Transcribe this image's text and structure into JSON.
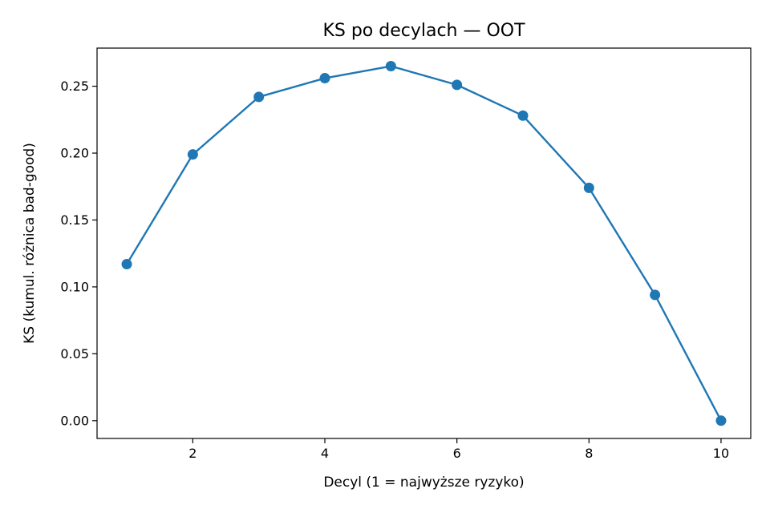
{
  "chart_data": {
    "type": "line",
    "title": "KS po decylach — OOT",
    "xlabel": "Decyl (1 = najwyższe ryzyko)",
    "ylabel": "KS (kumul. różnica bad-good)",
    "x": [
      1,
      2,
      3,
      4,
      5,
      6,
      7,
      8,
      9,
      10
    ],
    "series": [
      {
        "values": [
          0.117,
          0.199,
          0.242,
          0.256,
          0.265,
          0.251,
          0.228,
          0.174,
          0.094,
          0.0
        ],
        "color": "#1f77b4",
        "marker": "circle"
      }
    ],
    "xlim": [
      0.55,
      10.45
    ],
    "ylim": [
      -0.0133,
      0.2785
    ],
    "xticks": [
      2,
      4,
      6,
      8,
      10
    ],
    "xtick_labels": [
      "2",
      "4",
      "6",
      "8",
      "10"
    ],
    "yticks": [
      0.0,
      0.05,
      0.1,
      0.15,
      0.2,
      0.25
    ],
    "ytick_labels": [
      "0.00",
      "0.05",
      "0.10",
      "0.15",
      "0.20",
      "0.25"
    ],
    "grid": false,
    "legend": "none"
  }
}
